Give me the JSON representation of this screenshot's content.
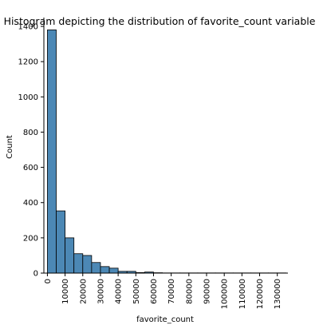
{
  "chart_data": {
    "type": "bar",
    "subtype": "histogram",
    "title": "Histogram depicting the distribution of favorite_count variable",
    "xlabel": "favorite_count",
    "ylabel": "Count",
    "bin_width": 5000,
    "bins": [
      {
        "start": 0,
        "end": 5000,
        "count": 1380
      },
      {
        "start": 5000,
        "end": 10000,
        "count": 353
      },
      {
        "start": 10000,
        "end": 15000,
        "count": 200
      },
      {
        "start": 15000,
        "end": 20000,
        "count": 110
      },
      {
        "start": 20000,
        "end": 25000,
        "count": 100
      },
      {
        "start": 25000,
        "end": 30000,
        "count": 60
      },
      {
        "start": 30000,
        "end": 35000,
        "count": 37
      },
      {
        "start": 35000,
        "end": 40000,
        "count": 28
      },
      {
        "start": 40000,
        "end": 45000,
        "count": 10
      },
      {
        "start": 45000,
        "end": 50000,
        "count": 10
      },
      {
        "start": 50000,
        "end": 55000,
        "count": 3
      },
      {
        "start": 55000,
        "end": 60000,
        "count": 6
      },
      {
        "start": 60000,
        "end": 65000,
        "count": 2
      },
      {
        "start": 65000,
        "end": 70000,
        "count": 1
      },
      {
        "start": 70000,
        "end": 75000,
        "count": 1
      },
      {
        "start": 75000,
        "end": 80000,
        "count": 1
      },
      {
        "start": 80000,
        "end": 85000,
        "count": 1
      },
      {
        "start": 85000,
        "end": 90000,
        "count": 1
      },
      {
        "start": 90000,
        "end": 95000,
        "count": 1
      },
      {
        "start": 95000,
        "end": 100000,
        "count": 1
      },
      {
        "start": 100000,
        "end": 105000,
        "count": 1
      },
      {
        "start": 105000,
        "end": 110000,
        "count": 1
      },
      {
        "start": 110000,
        "end": 115000,
        "count": 1
      },
      {
        "start": 115000,
        "end": 120000,
        "count": 1
      },
      {
        "start": 120000,
        "end": 125000,
        "count": 1
      },
      {
        "start": 125000,
        "end": 130000,
        "count": 1
      },
      {
        "start": 130000,
        "end": 135000,
        "count": 1
      }
    ],
    "xticks": [
      0,
      10000,
      20000,
      30000,
      40000,
      50000,
      60000,
      70000,
      80000,
      90000,
      100000,
      110000,
      120000,
      130000
    ],
    "yticks": [
      0,
      200,
      400,
      600,
      800,
      1000,
      1200,
      1400
    ],
    "xlim": [
      -2000,
      136000
    ],
    "ylim": [
      0,
      1450
    ],
    "grid": false,
    "colors": {
      "bar_fill": "#4c88b5",
      "bar_edge": "#000000",
      "axis": "#000000"
    }
  }
}
